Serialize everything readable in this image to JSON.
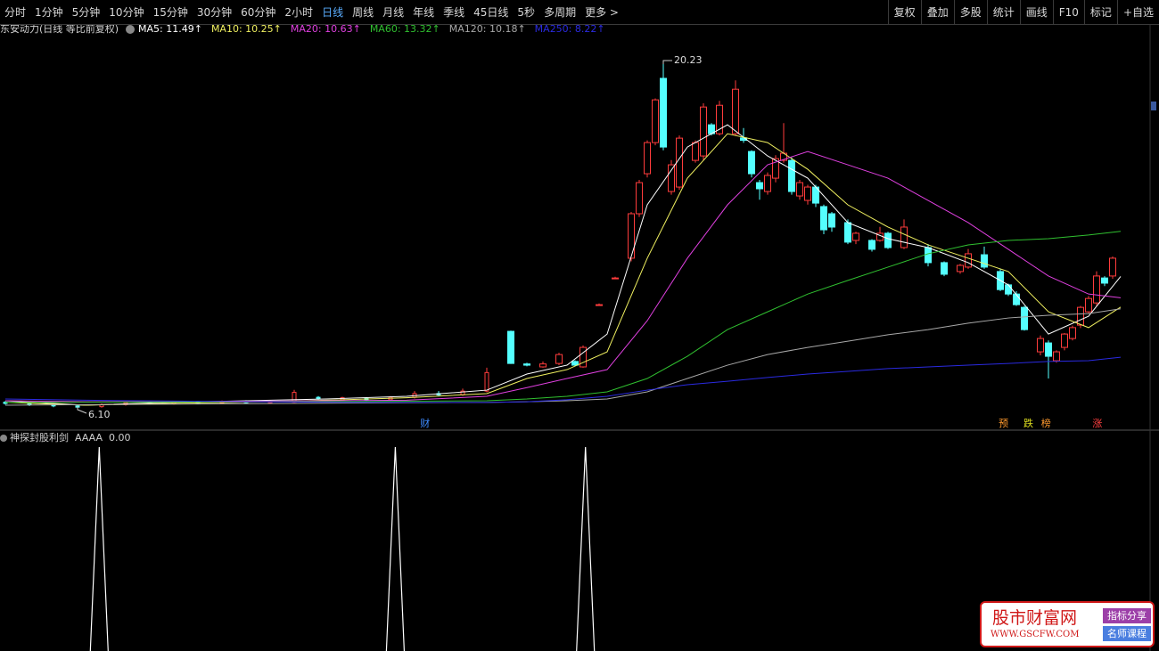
{
  "toolbar": {
    "left": [
      "分时",
      "1分钟",
      "5分钟",
      "10分钟",
      "15分钟",
      "30分钟",
      "60分钟",
      "2小时",
      "日线",
      "周线",
      "月线",
      "年线",
      "季线",
      "45日线",
      "5秒",
      "多周期",
      "更多 >"
    ],
    "right": [
      "复权",
      "叠加",
      "多股",
      "统计",
      "画线",
      "F10",
      "标记",
      "+自选"
    ]
  },
  "chart_data": [
    {
      "type": "candlestick",
      "title": "东安动力(日线 等比前复权)",
      "xlim": [
        0,
        140
      ],
      "ylim": [
        5.27,
        21.24
      ],
      "candles": {
        "x": [
          0,
          3,
          6,
          9,
          12,
          15,
          18,
          21,
          24,
          27,
          30,
          33,
          36,
          39,
          42,
          45,
          48,
          51,
          54,
          57,
          60,
          63,
          65,
          67,
          69,
          71,
          72,
          74,
          76,
          78,
          79,
          80,
          81,
          82,
          83,
          84,
          86,
          87,
          88,
          89,
          91,
          92,
          93,
          94,
          95,
          96,
          97,
          98,
          99,
          100,
          101,
          102,
          103,
          105,
          106,
          108,
          109,
          110,
          112,
          115,
          117,
          119,
          120,
          122,
          124,
          125,
          126,
          127,
          129,
          130,
          131,
          132,
          133,
          134,
          135,
          136,
          137,
          138
        ],
        "open": [
          6.4,
          6.35,
          6.3,
          6.25,
          6.22,
          6.3,
          6.38,
          6.34,
          6.4,
          6.36,
          6.42,
          6.38,
          6.4,
          6.6,
          6.5,
          6.55,
          6.5,
          6.6,
          6.75,
          6.7,
          6.85,
          9.27,
          7.95,
          7.83,
          7.97,
          8.05,
          7.83,
          10.35,
          11.43,
          12.23,
          14.03,
          15.65,
          16.91,
          19.51,
          14.93,
          15.11,
          16.19,
          16.37,
          17.63,
          17.27,
          17.27,
          17.1,
          16.55,
          15.29,
          14.93,
          15.47,
          16.19,
          16.19,
          14.75,
          14.57,
          15.11,
          14.32,
          14.03,
          13.67,
          12.95,
          12.95,
          12.95,
          13.24,
          12.66,
          12.66,
          12.05,
          11.69,
          11.87,
          12.37,
          11.69,
          11.15,
          10.78,
          10.24,
          8.44,
          8.8,
          8.08,
          8.62,
          8.98,
          9.52,
          10.06,
          10.42,
          11.43,
          11.51
        ],
        "close": [
          6.35,
          6.3,
          6.25,
          6.2,
          6.3,
          6.38,
          6.34,
          6.4,
          6.36,
          6.42,
          6.38,
          6.44,
          6.8,
          6.55,
          6.58,
          6.5,
          6.6,
          6.75,
          6.7,
          6.85,
          7.6,
          7.97,
          7.9,
          7.95,
          8.33,
          7.9,
          8.62,
          10.35,
          11.43,
          14.03,
          15.29,
          16.91,
          18.64,
          16.73,
          16.01,
          17.09,
          16.91,
          18.35,
          17.27,
          18.42,
          19.07,
          17.0,
          15.65,
          15.04,
          15.58,
          16.26,
          16.48,
          14.93,
          15.29,
          15.11,
          14.46,
          13.38,
          13.49,
          12.88,
          13.24,
          12.59,
          13.24,
          12.66,
          13.49,
          12.05,
          11.58,
          11.94,
          12.41,
          11.87,
          10.96,
          10.78,
          10.35,
          9.34,
          8.98,
          8.26,
          8.44,
          9.16,
          9.42,
          10.24,
          10.6,
          11.51,
          11.22,
          12.23
        ],
        "high": [
          6.45,
          6.4,
          6.35,
          6.3,
          6.35,
          6.42,
          6.42,
          6.45,
          6.46,
          6.47,
          6.48,
          6.48,
          6.9,
          6.65,
          6.62,
          6.6,
          6.65,
          6.85,
          6.85,
          6.95,
          7.8,
          9.3,
          8.0,
          8.05,
          8.4,
          8.1,
          8.7,
          10.4,
          11.48,
          14.1,
          15.4,
          17.0,
          18.7,
          20.23,
          16.2,
          17.2,
          17.0,
          18.5,
          17.7,
          18.6,
          19.43,
          17.5,
          16.6,
          15.4,
          15.7,
          16.4,
          17.7,
          16.3,
          15.4,
          15.2,
          15.2,
          14.4,
          14.1,
          13.8,
          13.3,
          13.0,
          13.5,
          13.3,
          13.8,
          12.8,
          12.1,
          12.0,
          12.6,
          12.7,
          11.8,
          11.2,
          10.9,
          10.3,
          9.1,
          8.9,
          8.5,
          9.2,
          9.5,
          10.3,
          10.7,
          11.7,
          11.5,
          12.3
        ],
        "low": [
          6.3,
          6.25,
          6.2,
          6.1,
          6.18,
          6.26,
          6.3,
          6.3,
          6.32,
          6.33,
          6.35,
          6.34,
          6.38,
          6.5,
          6.46,
          6.45,
          6.46,
          6.55,
          6.65,
          6.66,
          6.8,
          7.95,
          7.85,
          7.8,
          7.9,
          7.85,
          7.8,
          10.3,
          11.4,
          12.1,
          13.9,
          15.5,
          16.8,
          16.6,
          14.8,
          15.0,
          16.1,
          16.2,
          17.2,
          17.2,
          17.2,
          16.9,
          15.5,
          14.6,
          14.8,
          15.3,
          16.1,
          14.8,
          14.6,
          14.4,
          14.3,
          13.2,
          13.3,
          12.8,
          12.8,
          12.5,
          12.9,
          12.6,
          12.6,
          11.9,
          11.5,
          11.6,
          11.8,
          11.8,
          10.9,
          10.7,
          10.3,
          9.3,
          8.3,
          7.36,
          8.0,
          8.5,
          8.9,
          9.4,
          10.0,
          10.3,
          11.1,
          11.4
        ]
      },
      "max_label": 20.23,
      "min_label": {
        "value": 6.1,
        "label": "6.10"
      },
      "ma_x": [
        0,
        10,
        20,
        30,
        40,
        50,
        60,
        65,
        70,
        75,
        80,
        85,
        90,
        95,
        100,
        105,
        110,
        115,
        120,
        125,
        130,
        135,
        139
      ],
      "series": [
        {
          "name": "MA5",
          "label": "MA5: 11.49↑",
          "color": "#ffffff",
          "values": [
            6.46,
            6.28,
            6.39,
            6.46,
            6.53,
            6.64,
            6.89,
            7.54,
            7.9,
            9.16,
            14.39,
            16.73,
            17.63,
            16.37,
            15.47,
            13.67,
            13.02,
            12.66,
            12.05,
            11.15,
            9.16,
            9.88,
            11.49
          ]
        },
        {
          "name": "MA10",
          "label": "MA10: 10.25↑",
          "color": "#f0f060",
          "values": [
            6.39,
            6.28,
            6.35,
            6.4,
            6.48,
            6.58,
            6.75,
            7.36,
            7.72,
            8.44,
            12.23,
            15.47,
            17.27,
            16.91,
            15.83,
            14.39,
            13.49,
            12.77,
            12.23,
            11.69,
            10.06,
            9.42,
            10.25
          ]
        },
        {
          "name": "MA20",
          "label": "MA20: 10.63↑",
          "color": "#e040e0",
          "values": [
            6.46,
            6.42,
            6.42,
            6.44,
            6.46,
            6.48,
            6.64,
            6.99,
            7.36,
            7.72,
            9.7,
            12.23,
            14.39,
            16.01,
            16.55,
            16.01,
            15.47,
            14.57,
            13.67,
            12.59,
            11.51,
            10.78,
            10.63
          ]
        },
        {
          "name": "MA60",
          "label": "MA60: 13.32↑",
          "color": "#30c030",
          "values": [
            6.39,
            6.4,
            6.41,
            6.42,
            6.43,
            6.44,
            6.46,
            6.53,
            6.64,
            6.82,
            7.36,
            8.26,
            9.34,
            10.06,
            10.78,
            11.33,
            11.87,
            12.41,
            12.77,
            12.95,
            13.02,
            13.17,
            13.32
          ]
        },
        {
          "name": "MA120",
          "label": "MA120: 10.18↑",
          "color": "#a8a8a8",
          "values": [
            6.28,
            6.3,
            6.32,
            6.34,
            6.36,
            6.38,
            6.39,
            6.42,
            6.46,
            6.53,
            6.82,
            7.36,
            7.9,
            8.33,
            8.62,
            8.87,
            9.13,
            9.34,
            9.6,
            9.81,
            9.92,
            9.99,
            10.18
          ]
        },
        {
          "name": "MA250",
          "label": "MA250: 8.22↑",
          "color": "#2a2ae0",
          "values": [
            6.53,
            6.48,
            6.45,
            6.42,
            6.4,
            6.39,
            6.39,
            6.42,
            6.5,
            6.64,
            6.89,
            7.11,
            7.25,
            7.4,
            7.54,
            7.65,
            7.76,
            7.83,
            7.9,
            7.97,
            8.05,
            8.08,
            8.22
          ]
        }
      ],
      "markers": [
        {
          "x": 52.3,
          "text": "财",
          "color": "#3d8bff"
        },
        {
          "x": 124.4,
          "text": "预",
          "color": "#ff9a2e"
        },
        {
          "x": 127.5,
          "text": "跌",
          "color": "#e0e020"
        },
        {
          "x": 129.7,
          "text": "榜",
          "color": "#ff9a2e"
        },
        {
          "x": 136.1,
          "text": "涨",
          "color": "#ff4040"
        }
      ]
    },
    {
      "type": "signal",
      "title": "神探封股利剑",
      "series_name": "AAAA",
      "current_value": {
        "value": 0,
        "label": "0.00"
      },
      "xlim": [
        0,
        140
      ],
      "ylim": [
        0,
        1
      ],
      "color": "#ffffff",
      "x": [
        11.7,
        48.6,
        72.3
      ],
      "values": [
        1,
        1,
        1
      ]
    }
  ],
  "watermark": {
    "name": "股市财富网",
    "url": "WWW.GSCFW.COM",
    "tag1": "指标分享",
    "tag2": "名师课程"
  }
}
